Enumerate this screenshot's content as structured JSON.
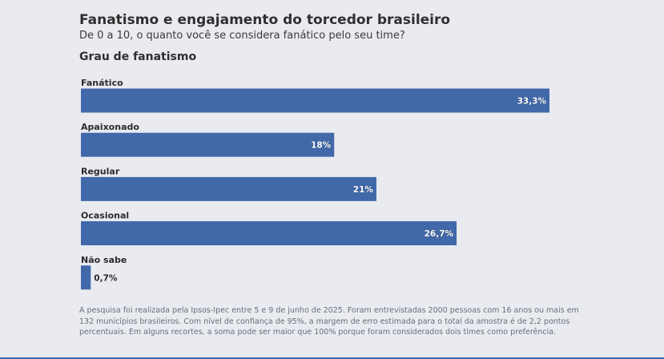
{
  "header": {
    "title": "Fanatismo e engajamento do torcedor brasileiro",
    "subtitle": "De 0 a 10, o quanto você se considera fanático pelo seu time?"
  },
  "footnote": "A pesquisa foi realizada pela Ipsos-Ipec entre 5 e 9 de junho de 2025. Foram entrevistadas 2000 pessoas com 16 anos ou mais em 132 municípios brasileiros. Com nível de confiança de 95%, a margem de erro estimada para o total da amostra é de 2,2 pontos percentuais. Em alguns recortes, a soma pode ser maior que 100% porque foram considerados dois times como preferência.",
  "chart_data": {
    "type": "bar",
    "orientation": "horizontal",
    "title": "Grau de fanatismo",
    "categories": [
      "Fanático",
      "Apaixonado",
      "Regular",
      "Ocasional",
      "Não sabe"
    ],
    "values": [
      33.3,
      18,
      21,
      26.7,
      0.7
    ],
    "value_labels": [
      "33,3%",
      "18%",
      "21%",
      "26,7%",
      "0,7%"
    ],
    "xlim": [
      0,
      33.3
    ],
    "grid": false,
    "legend": "none",
    "bar_color": "#4168a9"
  }
}
